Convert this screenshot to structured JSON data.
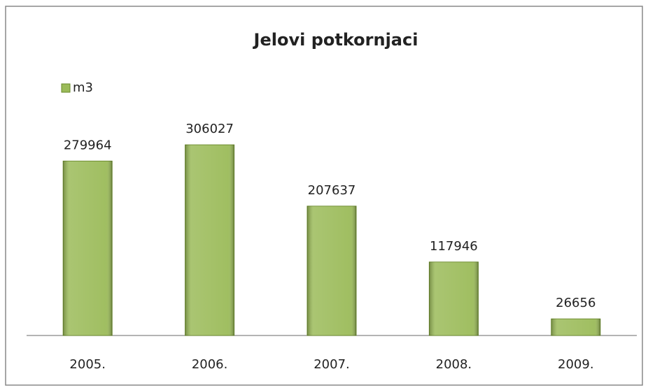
{
  "chart_data": {
    "type": "bar",
    "title": "Jelovi potkornjaci",
    "categories": [
      "2005.",
      "2006.",
      "2007.",
      "2008.",
      "2009."
    ],
    "series": [
      {
        "name": "m3",
        "color": "#9bbb59",
        "values": [
          279964,
          306027,
          207637,
          117946,
          26656
        ]
      }
    ],
    "ylim": [
      0,
      350000
    ],
    "legend": "top-left"
  }
}
